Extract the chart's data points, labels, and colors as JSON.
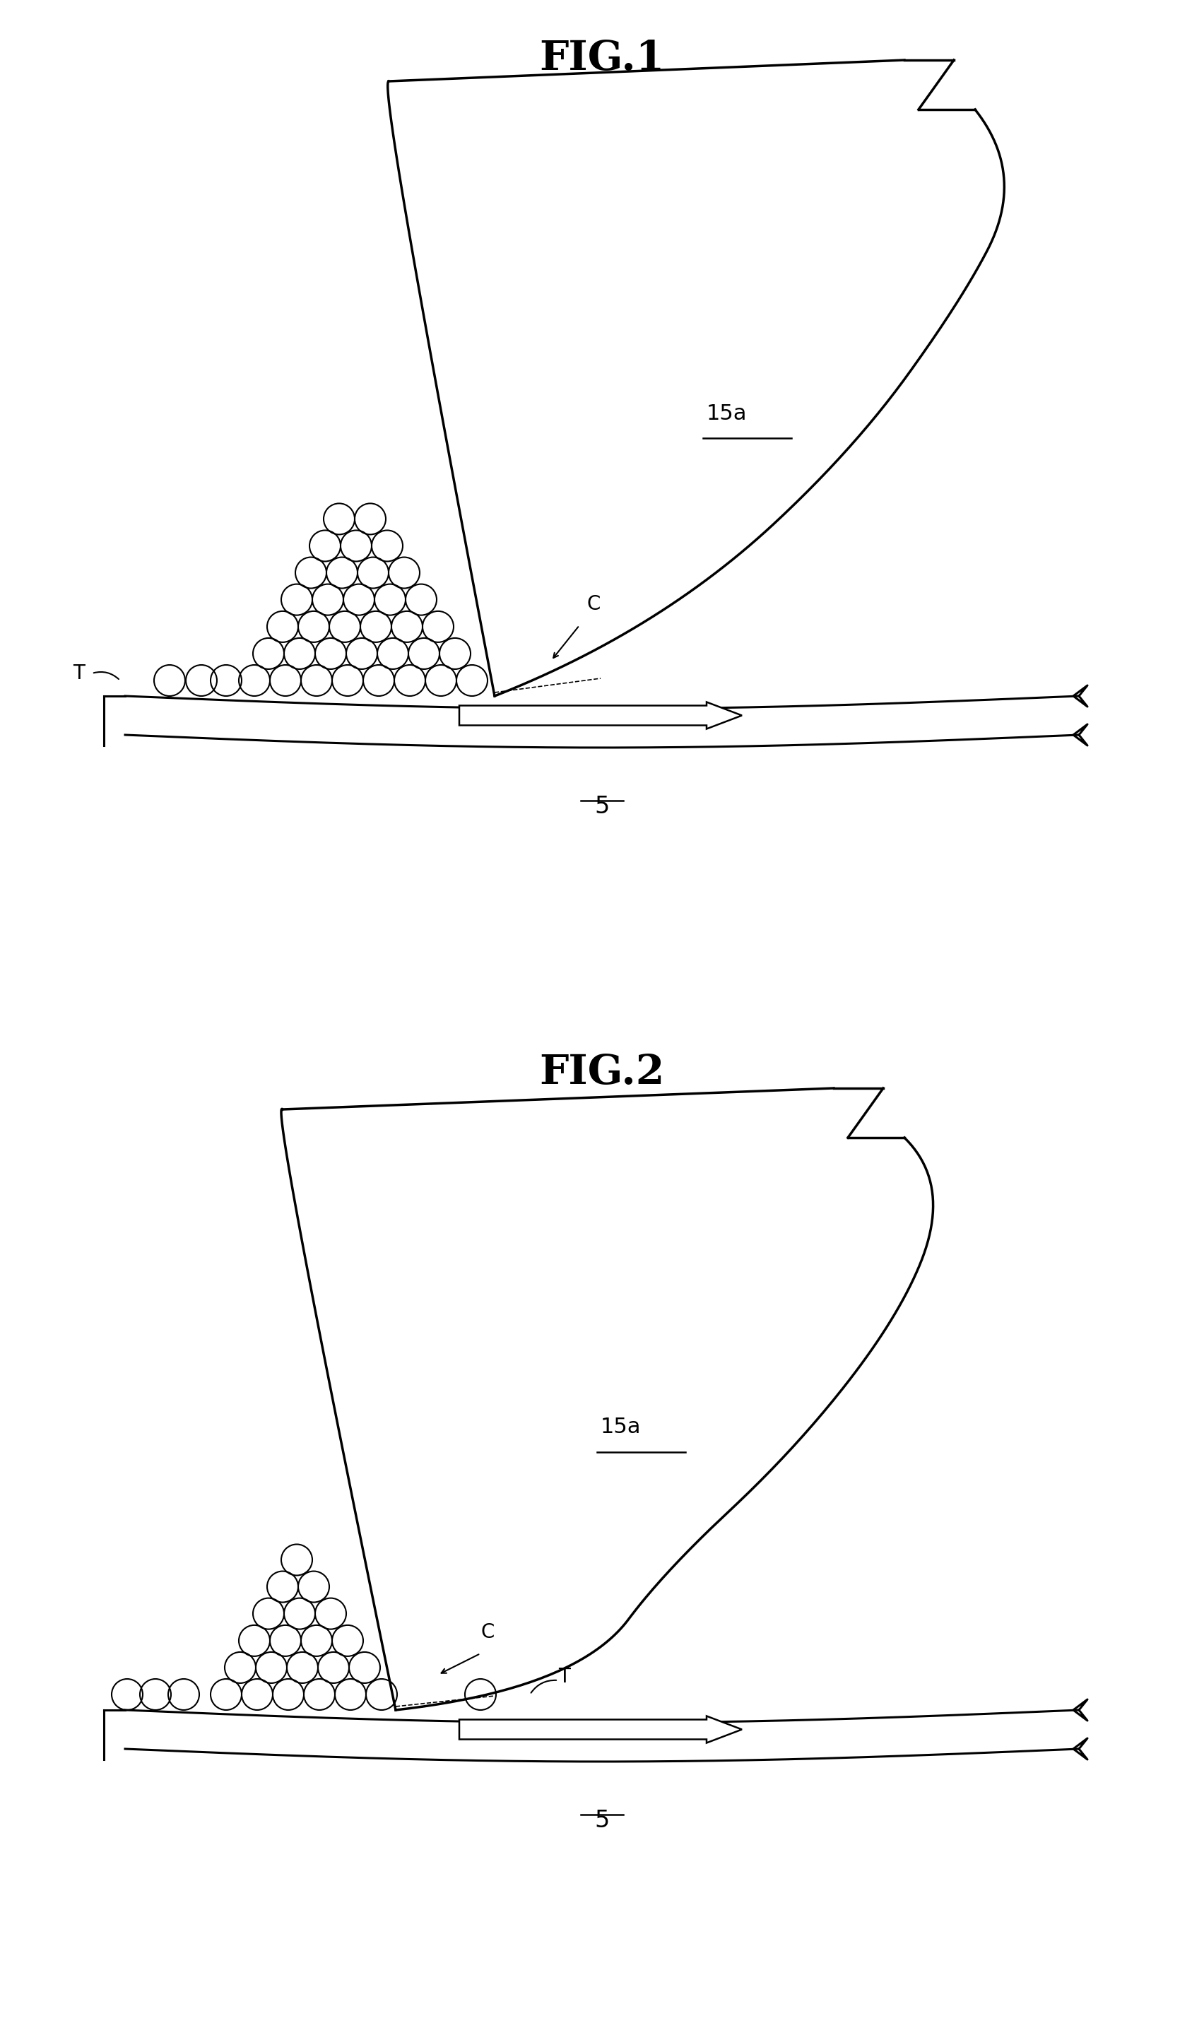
{
  "fig1_title": "FIG.1",
  "fig2_title": "FIG.2",
  "label_15a": "15a",
  "label_5": "5",
  "label_T1": "T",
  "label_T2": "T",
  "label_C1": "C",
  "label_C2": "C",
  "bg_color": "#ffffff",
  "line_color": "#000000",
  "line_width": 2.2,
  "title_fontsize": 42,
  "label_fontsize": 20
}
